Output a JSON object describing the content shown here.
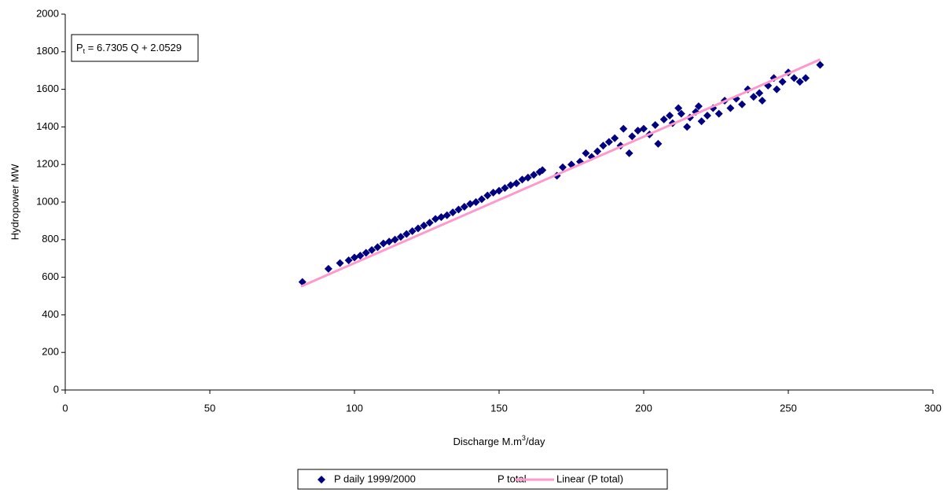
{
  "chart_data": {
    "type": "scatter",
    "annotation": {
      "main": "P",
      "sub": "t",
      "rest": " = 6.7305 Q + 2.0529"
    },
    "x_label": {
      "main": "Discharge M.m",
      "sup": "3",
      "rest": "/day"
    },
    "y_label": "Hydropower MW",
    "xlim": [
      0,
      300
    ],
    "ylim": [
      0,
      2000
    ],
    "xticks": [
      0,
      50,
      100,
      150,
      200,
      250,
      300
    ],
    "yticks": [
      0,
      200,
      400,
      600,
      800,
      1000,
      1200,
      1400,
      1600,
      1800,
      2000
    ],
    "grid": false,
    "legend": "bottom",
    "series": [
      {
        "name": "P daily 1999/2000",
        "color": "#000080",
        "marker": "diamond",
        "x": [
          82,
          91,
          95,
          98,
          100,
          102,
          104,
          106,
          108,
          110,
          112,
          114,
          116,
          118,
          120,
          122,
          124,
          126,
          128,
          130,
          132,
          134,
          136,
          138,
          140,
          142,
          144,
          146,
          148,
          150,
          152,
          154,
          156,
          158,
          160,
          162,
          164,
          165,
          170,
          172,
          175,
          178,
          180,
          182,
          184,
          186,
          188,
          190,
          192,
          193,
          195,
          196,
          198,
          200,
          202,
          204,
          205,
          207,
          209,
          210,
          212,
          213,
          215,
          216,
          218,
          219,
          220,
          222,
          224,
          226,
          228,
          230,
          232,
          234,
          236,
          238,
          240,
          241,
          243,
          245,
          246,
          248,
          250,
          252,
          254,
          256,
          261
        ],
        "values": [
          575,
          645,
          675,
          690,
          705,
          715,
          730,
          745,
          760,
          780,
          790,
          800,
          815,
          830,
          845,
          860,
          875,
          890,
          910,
          920,
          930,
          945,
          960,
          975,
          990,
          1000,
          1015,
          1035,
          1050,
          1060,
          1075,
          1090,
          1100,
          1120,
          1130,
          1145,
          1160,
          1170,
          1140,
          1185,
          1200,
          1215,
          1260,
          1240,
          1270,
          1300,
          1320,
          1340,
          1300,
          1390,
          1260,
          1350,
          1380,
          1390,
          1360,
          1410,
          1310,
          1440,
          1460,
          1420,
          1500,
          1470,
          1400,
          1450,
          1480,
          1510,
          1430,
          1460,
          1500,
          1470,
          1540,
          1500,
          1550,
          1520,
          1600,
          1560,
          1580,
          1540,
          1620,
          1660,
          1600,
          1640,
          1690,
          1660,
          1640,
          1660,
          1730
        ]
      },
      {
        "name": "P total",
        "marker": "none",
        "x": [],
        "values": []
      },
      {
        "name": "Linear (P total)",
        "color": "#ff99cc",
        "marker": "none",
        "line": true,
        "x": [
          81.5,
          261
        ],
        "values": [
          550.6,
          1758.7
        ]
      }
    ]
  }
}
